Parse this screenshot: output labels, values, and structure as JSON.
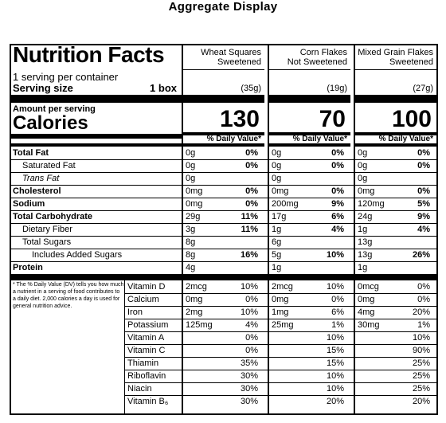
{
  "heading": "Aggregate Display",
  "title": "Nutrition Facts",
  "servings_per_container": "1 serving per container",
  "serving_size_label": "Serving size",
  "serving_size_value": "1 box",
  "amount_per_serving": "Amount per serving",
  "calories_label": "Calories",
  "dv_header": "% Daily Value*",
  "products": [
    {
      "line1": "Wheat Squares",
      "line2": "Sweetened",
      "serving": "(35g)",
      "calories": "130"
    },
    {
      "line1": "Corn Flakes",
      "line2": "Not Sweetened",
      "serving": "(19g)",
      "calories": "70"
    },
    {
      "line1": "Mixed Grain Flakes",
      "line2": "Sweetened",
      "serving": "(27g)",
      "calories": "100"
    }
  ],
  "nutrients": [
    {
      "label": "Total Fat",
      "style": "bold",
      "values": [
        [
          "0g",
          "0%"
        ],
        [
          "0g",
          "0%"
        ],
        [
          "0g",
          "0%"
        ]
      ]
    },
    {
      "label": "Saturated Fat",
      "style": "indent",
      "values": [
        [
          "0g",
          "0%"
        ],
        [
          "0g",
          "0%"
        ],
        [
          "0g",
          "0%"
        ]
      ]
    },
    {
      "label": "Trans Fat",
      "style": "italic-indent",
      "values": [
        [
          "0g",
          ""
        ],
        [
          "0g",
          ""
        ],
        [
          "0g",
          ""
        ]
      ]
    },
    {
      "label": "Cholesterol",
      "style": "bold",
      "values": [
        [
          "0mg",
          "0%"
        ],
        [
          "0mg",
          "0%"
        ],
        [
          "0mg",
          "0%"
        ]
      ]
    },
    {
      "label": "Sodium",
      "style": "bold",
      "values": [
        [
          "0mg",
          "0%"
        ],
        [
          "200mg",
          "9%"
        ],
        [
          "120mg",
          "5%"
        ]
      ]
    },
    {
      "label": "Total Carbohydrate",
      "style": "bold",
      "values": [
        [
          "29g",
          "11%"
        ],
        [
          "17g",
          "6%"
        ],
        [
          "24g",
          "9%"
        ]
      ]
    },
    {
      "label": "Dietary Fiber",
      "style": "indent",
      "values": [
        [
          "3g",
          "11%"
        ],
        [
          "1g",
          "4%"
        ],
        [
          "1g",
          "4%"
        ]
      ]
    },
    {
      "label": "Total Sugars",
      "style": "indent",
      "values": [
        [
          "8g",
          ""
        ],
        [
          "6g",
          ""
        ],
        [
          "13g",
          ""
        ]
      ]
    },
    {
      "label": "Includes Added Sugars",
      "style": "indent2",
      "values": [
        [
          "8g",
          "16%"
        ],
        [
          "5g",
          "10%"
        ],
        [
          "13g",
          "26%"
        ]
      ]
    },
    {
      "label": "Protein",
      "style": "bold",
      "values": [
        [
          "4g",
          ""
        ],
        [
          "1g",
          ""
        ],
        [
          "1g",
          ""
        ]
      ]
    }
  ],
  "footnote": "* The % Daily Value (DV) tells you how much a nutrient in a serving of food contributes to a daily diet. 2,000 calories a day is used for general nutrition advice.",
  "vitamins": [
    {
      "label": "Vitamin D",
      "values": [
        [
          "2mcg",
          "10%"
        ],
        [
          "2mcg",
          "10%"
        ],
        [
          "0mcg",
          "0%"
        ]
      ]
    },
    {
      "label": "Calcium",
      "values": [
        [
          "0mg",
          "0%"
        ],
        [
          "0mg",
          "0%"
        ],
        [
          "0mg",
          "0%"
        ]
      ]
    },
    {
      "label": "Iron",
      "values": [
        [
          "2mg",
          "10%"
        ],
        [
          "1mg",
          "6%"
        ],
        [
          "4mg",
          "20%"
        ]
      ]
    },
    {
      "label": "Potassium",
      "values": [
        [
          "125mg",
          "4%"
        ],
        [
          "25mg",
          "1%"
        ],
        [
          "30mg",
          "1%"
        ]
      ]
    },
    {
      "label": "Vitamin A",
      "values": [
        [
          "",
          "0%"
        ],
        [
          "",
          "10%"
        ],
        [
          "",
          "10%"
        ]
      ]
    },
    {
      "label": "Vitamin C",
      "values": [
        [
          "",
          "0%"
        ],
        [
          "",
          "15%"
        ],
        [
          "",
          "90%"
        ]
      ]
    },
    {
      "label": "Thiamin",
      "values": [
        [
          "",
          "35%"
        ],
        [
          "",
          "15%"
        ],
        [
          "",
          "25%"
        ]
      ]
    },
    {
      "label": "Riboflavin",
      "values": [
        [
          "",
          "30%"
        ],
        [
          "",
          "10%"
        ],
        [
          "",
          "25%"
        ]
      ]
    },
    {
      "label": "Niacin",
      "values": [
        [
          "",
          "30%"
        ],
        [
          "",
          "10%"
        ],
        [
          "",
          "25%"
        ]
      ]
    },
    {
      "label": "Vitamin B₆",
      "values": [
        [
          "",
          "30%"
        ],
        [
          "",
          "20%"
        ],
        [
          "",
          "20%"
        ]
      ]
    }
  ]
}
